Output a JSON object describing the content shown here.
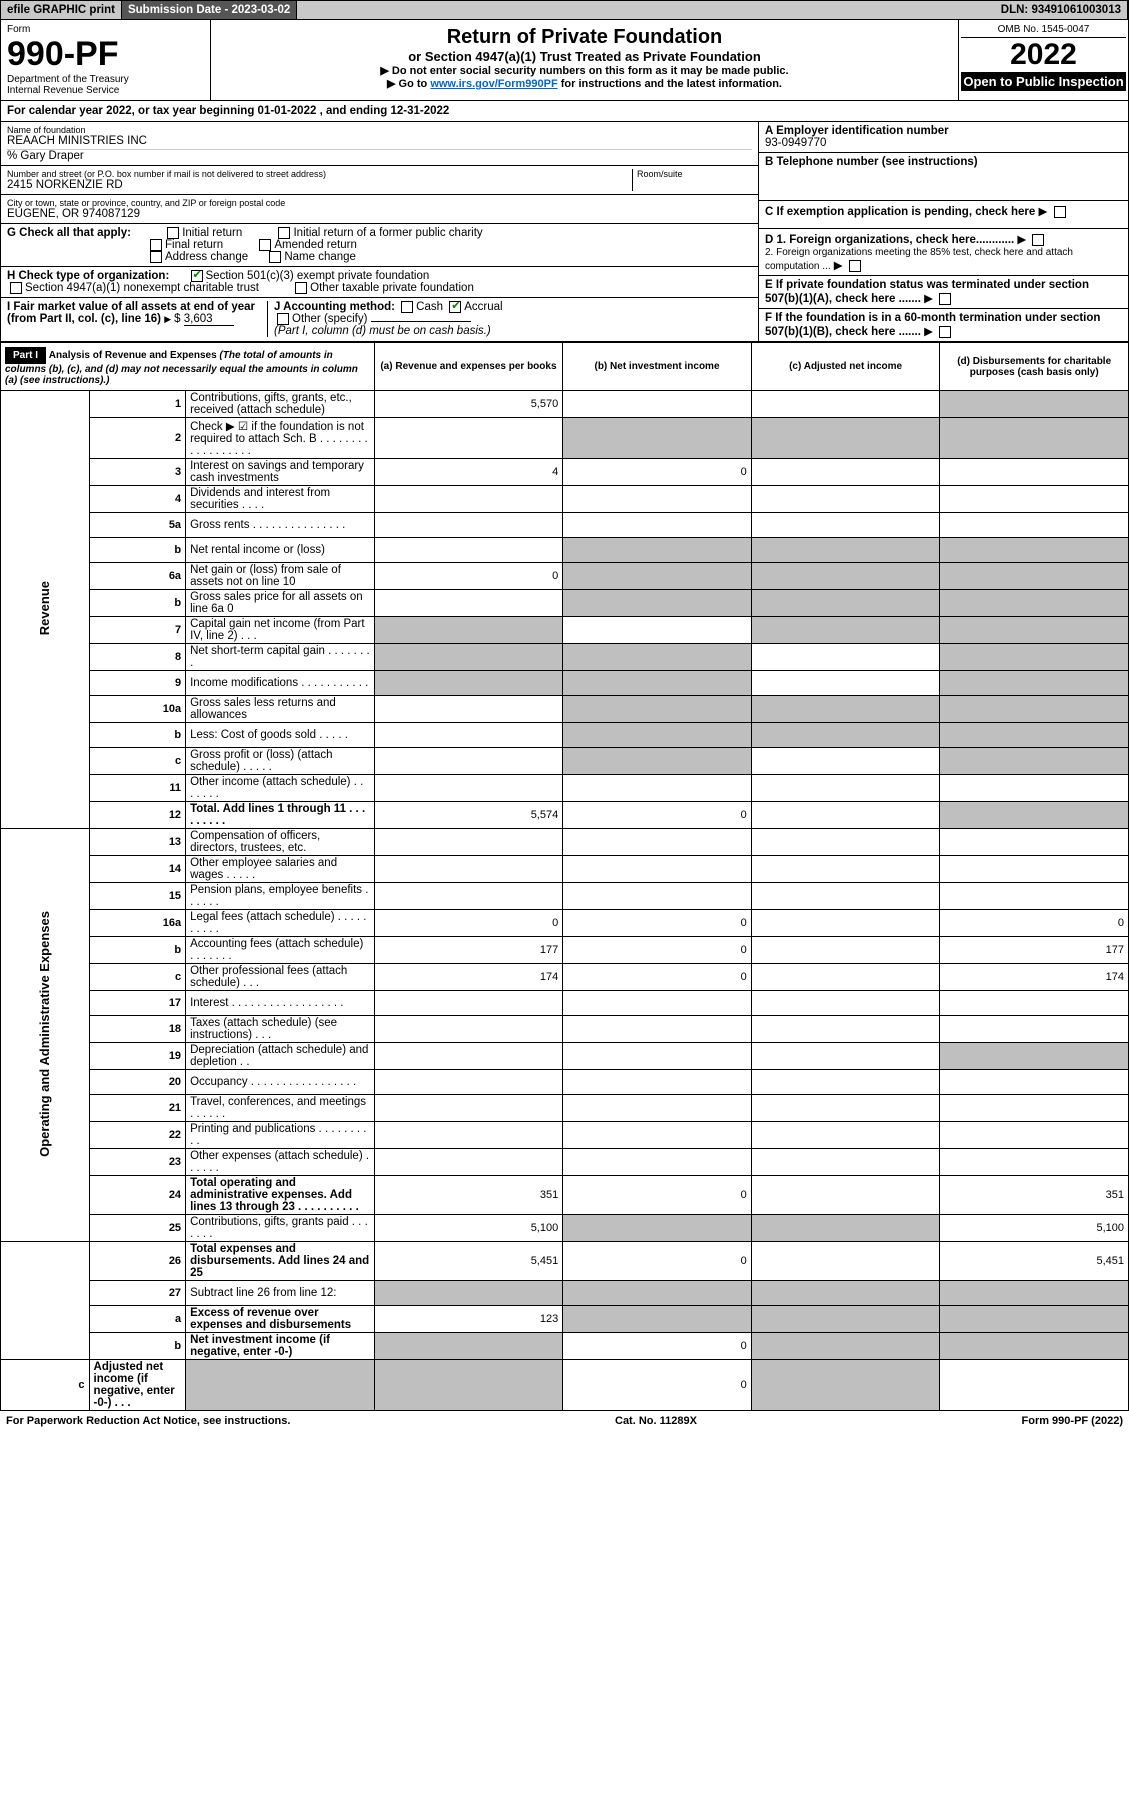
{
  "top": {
    "efile": "efile GRAPHIC print",
    "submission": "Submission Date - 2023-03-02",
    "dln": "DLN: 93491061003013"
  },
  "header": {
    "form_label": "Form",
    "form_number": "990-PF",
    "dept": "Department of the Treasury\nInternal Revenue Service",
    "title": "Return of Private Foundation",
    "subtitle": "or Section 4947(a)(1) Trust Treated as Private Foundation",
    "instr1": "▶ Do not enter social security numbers on this form as it may be made public.",
    "instr2_pre": "▶ Go to ",
    "instr2_link": "www.irs.gov/Form990PF",
    "instr2_post": " for instructions and the latest information.",
    "omb": "OMB No. 1545-0047",
    "year": "2022",
    "inspect": "Open to Public Inspection"
  },
  "cal_year": "For calendar year 2022, or tax year beginning 01-01-2022              , and ending 12-31-2022",
  "info": {
    "name_label": "Name of foundation",
    "name": "REAACH MINISTRIES INC",
    "co": "% Gary Draper",
    "addr_label": "Number and street (or P.O. box number if mail is not delivered to street address)",
    "addr": "2415 NORKENZIE RD",
    "room_label": "Room/suite",
    "city_label": "City or town, state or province, country, and ZIP or foreign postal code",
    "city": "EUGENE, OR  974087129",
    "ein_label": "A Employer identification number",
    "ein": "93-0949770",
    "phone_label": "B Telephone number (see instructions)",
    "c_label": "C If exemption application is pending, check here",
    "g_label": "G Check all that apply:",
    "g_opts": [
      "Initial return",
      "Initial return of a former public charity",
      "Final return",
      "Amended return",
      "Address change",
      "Name change"
    ],
    "d1": "D 1. Foreign organizations, check here............",
    "d2": "2. Foreign organizations meeting the 85% test, check here and attach computation ...",
    "h_label": "H Check type of organization:",
    "h1": "Section 501(c)(3) exempt private foundation",
    "h2": "Section 4947(a)(1) nonexempt charitable trust",
    "h3": "Other taxable private foundation",
    "e_label": "E If private foundation status was terminated under section 507(b)(1)(A), check here .......",
    "i_label": "I Fair market value of all assets at end of year (from Part II, col. (c), line 16)",
    "i_value": "3,603",
    "j_label": "J Accounting method:",
    "j_cash": "Cash",
    "j_accrual": "Accrual",
    "j_other": "Other (specify)",
    "j_note": "(Part I, column (d) must be on cash basis.)",
    "f_label": "F If the foundation is in a 60-month termination under section 507(b)(1)(B), check here ......."
  },
  "part1": {
    "badge": "Part I",
    "title": "Analysis of Revenue and Expenses",
    "note": " (The total of amounts in columns (b), (c), and (d) may not necessarily equal the amounts in column (a) (see instructions).)",
    "cols": {
      "a": "(a) Revenue and expenses per books",
      "b": "(b) Net investment income",
      "c": "(c) Adjusted net income",
      "d": "(d) Disbursements for charitable purposes (cash basis only)"
    }
  },
  "vert": {
    "revenue": "Revenue",
    "opex": "Operating and Administrative Expenses"
  },
  "rows": [
    {
      "n": "1",
      "d": "Contributions, gifts, grants, etc., received (attach schedule)",
      "a": "5,570",
      "greyD": true
    },
    {
      "n": "2",
      "d": "Check ▶ ☑ if the foundation is not required to attach Sch. B   . . . . . . . . . . . . . . . . . .",
      "allgrey": true,
      "b": false
    },
    {
      "n": "3",
      "d": "Interest on savings and temporary cash investments",
      "a": "4",
      "b": "0"
    },
    {
      "n": "4",
      "d": "Dividends and interest from securities   . . . ."
    },
    {
      "n": "5a",
      "d": "Gross rents   . . . . . . . . . . . . . . ."
    },
    {
      "n": "b",
      "d": "Net rental income or (loss)",
      "allgrey": true
    },
    {
      "n": "6a",
      "d": "Net gain or (loss) from sale of assets not on line 10",
      "a": "0",
      "greyBCD": true
    },
    {
      "n": "b",
      "d": "Gross sales price for all assets on line 6a                           0",
      "allgrey": true
    },
    {
      "n": "7",
      "d": "Capital gain net income (from Part IV, line 2)   . . .",
      "greyA": true,
      "greyCD": true
    },
    {
      "n": "8",
      "d": "Net short-term capital gain   . . . . . . . .",
      "greyAB": true,
      "greyD": true
    },
    {
      "n": "9",
      "d": "Income modifications   . . . . . . . . . . .",
      "greyAB": true,
      "greyD": true
    },
    {
      "n": "10a",
      "d": "Gross sales less returns and allowances",
      "allgrey": true
    },
    {
      "n": "b",
      "d": "Less: Cost of goods sold   . . . . .",
      "allgrey": true
    },
    {
      "n": "c",
      "d": "Gross profit or (loss) (attach schedule)   . . . . .",
      "greyB": true,
      "greyD": true
    },
    {
      "n": "11",
      "d": "Other income (attach schedule)   . . . . . . ."
    },
    {
      "n": "12",
      "d": "Total. Add lines 1 through 11   . . . . . . . . .",
      "a": "5,574",
      "b": "0",
      "bold": true,
      "greyD": true
    },
    {
      "n": "13",
      "d": "Compensation of officers, directors, trustees, etc."
    },
    {
      "n": "14",
      "d": "Other employee salaries and wages   . . . . ."
    },
    {
      "n": "15",
      "d": "Pension plans, employee benefits   . . . . . ."
    },
    {
      "n": "16a",
      "d": "Legal fees (attach schedule)  . . . . . . . . . .",
      "a": "0",
      "b": "0",
      "dd": "0"
    },
    {
      "n": "b",
      "d": "Accounting fees (attach schedule)   . . . . . . .",
      "a": "177",
      "b": "0",
      "dd": "177"
    },
    {
      "n": "c",
      "d": "Other professional fees (attach schedule)   . . .",
      "a": "174",
      "b": "0",
      "dd": "174"
    },
    {
      "n": "17",
      "d": "Interest   . . . . . . . . . . . . . . . . . ."
    },
    {
      "n": "18",
      "d": "Taxes (attach schedule) (see instructions)   . . ."
    },
    {
      "n": "19",
      "d": "Depreciation (attach schedule) and depletion   . .",
      "greyD": true
    },
    {
      "n": "20",
      "d": "Occupancy  . . . . . . . . . . . . . . . . ."
    },
    {
      "n": "21",
      "d": "Travel, conferences, and meetings   . . . . . ."
    },
    {
      "n": "22",
      "d": "Printing and publications   . . . . . . . . . ."
    },
    {
      "n": "23",
      "d": "Other expenses (attach schedule)   . . . . . ."
    },
    {
      "n": "24",
      "d": "Total operating and administrative expenses. Add lines 13 through 23   . . . . . . . . . .",
      "a": "351",
      "b": "0",
      "dd": "351",
      "bold": true
    },
    {
      "n": "25",
      "d": "Contributions, gifts, grants paid   . . . . . . .",
      "a": "5,100",
      "greyBC": true,
      "dd": "5,100"
    },
    {
      "n": "26",
      "d": "Total expenses and disbursements. Add lines 24 and 25",
      "a": "5,451",
      "b": "0",
      "dd": "5,451",
      "bold": true
    },
    {
      "n": "27",
      "d": "Subtract line 26 from line 12:",
      "greyAll": true
    },
    {
      "n": "a",
      "d": "Excess of revenue over expenses and disbursements",
      "a": "123",
      "greyBCD": true,
      "bold": true
    },
    {
      "n": "b",
      "d": "Net investment income (if negative, enter -0-)",
      "greyA": true,
      "b": "0",
      "greyCD": true,
      "bold": true
    },
    {
      "n": "c",
      "d": "Adjusted net income (if negative, enter -0-)   . . .",
      "greyAB": true,
      "c": "0",
      "greyD": true,
      "bold": true
    }
  ],
  "footer": {
    "left": "For Paperwork Reduction Act Notice, see instructions.",
    "mid": "Cat. No. 11289X",
    "right": "Form 990-PF (2022)"
  }
}
